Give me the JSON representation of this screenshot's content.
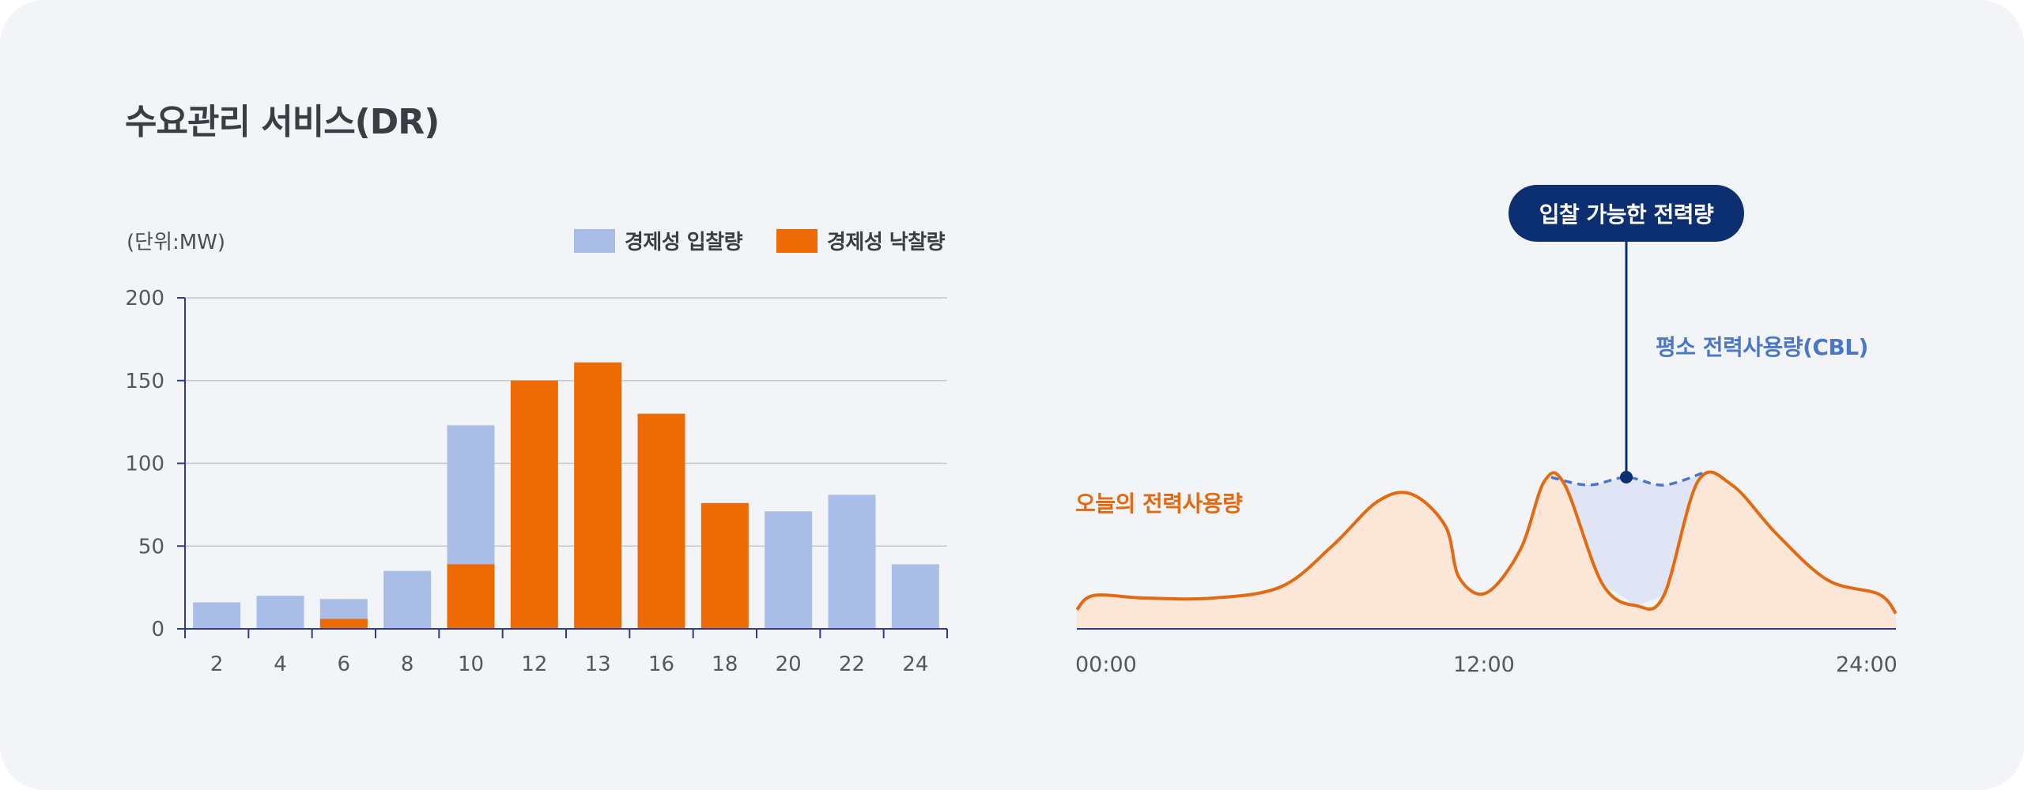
{
  "title": "수요관리 서비스(DR)",
  "colors": {
    "bid": "#a9bde6",
    "award": "#ee6a03",
    "axis": "#2d3d8c",
    "grid": "#c5c8d3",
    "today_line": "#e36a10",
    "today_fill": "#fce6d8",
    "cbl": "#4a77c8",
    "available_fill": "#dfe5f5",
    "callout": "#0c2f72"
  },
  "chart_data": [
    {
      "type": "bar",
      "unit_label": "(단위:MW)",
      "legend": [
        {
          "name": "경제성 입찰량",
          "color_key": "bid"
        },
        {
          "name": "경제성 낙찰량",
          "color_key": "award"
        }
      ],
      "ylim": [
        0,
        200
      ],
      "yticks": [
        0,
        50,
        100,
        150,
        200
      ],
      "categories": [
        "2",
        "4",
        "6",
        "8",
        "10",
        "12",
        "13",
        "16",
        "18",
        "20",
        "22",
        "24"
      ],
      "series": [
        {
          "name": "경제성 입찰량",
          "values": [
            16,
            20,
            18,
            35,
            123,
            0,
            0,
            0,
            0,
            71,
            81,
            39
          ]
        },
        {
          "name": "경제성 낙찰량",
          "values": [
            0,
            0,
            6,
            0,
            39,
            150,
            161,
            130,
            76,
            0,
            0,
            0
          ]
        }
      ],
      "legend_position": "top-right",
      "grid": true
    },
    {
      "type": "line",
      "x_ticks": [
        "00:00",
        "12:00",
        "24:00"
      ],
      "series": [
        {
          "name": "오늘의 전력사용량",
          "style": "solid, filled",
          "x": [
            0,
            0.5,
            2,
            4,
            6,
            7.5,
            8.8,
            9.8,
            10.8,
            11.2,
            12,
            13,
            13.7,
            14.3,
            15.4,
            16.4,
            17.2,
            18.2,
            19.2,
            20.5,
            22,
            23.5,
            24
          ],
          "y": [
            15,
            26,
            24,
            24,
            33,
            65,
            99,
            105,
            80,
            40,
            28,
            62,
            115,
            112,
            35,
            18,
            26,
            115,
            112,
            74,
            38,
            27,
            12
          ]
        },
        {
          "name": "평소 전력사용량(CBL)",
          "style": "dashed",
          "x": [
            13.9,
            15,
            16.1,
            17.2,
            18.4
          ],
          "y": [
            118,
            112,
            118,
            112,
            122
          ]
        }
      ],
      "ylim": [
        0,
        160
      ],
      "annotation": "입찰 가능한 전력량"
    }
  ]
}
